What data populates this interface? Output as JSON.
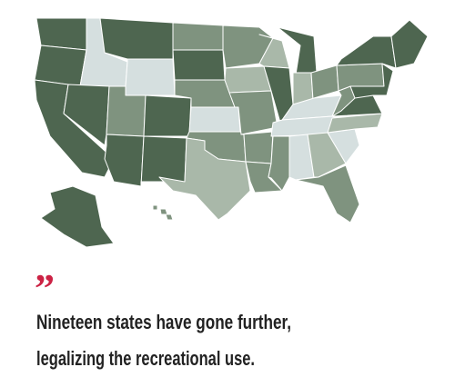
{
  "quote_mark": "”",
  "quote_lines": [
    "Nineteen states have gone further,",
    "legalizing the recreational use."
  ]
}
